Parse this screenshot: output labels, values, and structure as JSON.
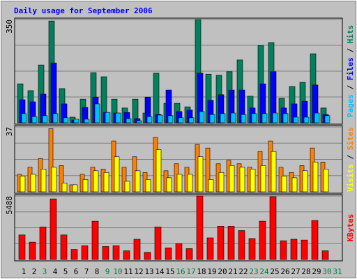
{
  "title": "Daily usage for September 2006",
  "categories": [
    "1",
    "2",
    "3",
    "4",
    "5",
    "6",
    "7",
    "8",
    "9",
    "10",
    "11",
    "12",
    "13",
    "14",
    "15",
    "16",
    "17",
    "18",
    "19",
    "20",
    "21",
    "22",
    "23",
    "24",
    "25",
    "26",
    "27",
    "28",
    "29",
    "30",
    "31"
  ],
  "category_colors": [
    "#000000",
    "#000000",
    "#008040",
    "#000000",
    "#000000",
    "#000000",
    "#000000",
    "#000000",
    "#008040",
    "#008040",
    "#000000",
    "#000000",
    "#000000",
    "#000000",
    "#000000",
    "#008040",
    "#008040",
    "#000000",
    "#000000",
    "#000000",
    "#000000",
    "#000000",
    "#008040",
    "#008040",
    "#000000",
    "#000000",
    "#000000",
    "#000000",
    "#000000",
    "#008040",
    "#008040"
  ],
  "legend_separator": " / ",
  "chart_data": [
    {
      "type": "bar",
      "ylim": [
        0,
        350
      ],
      "yticks": [
        350
      ],
      "series": [
        {
          "name": "Hits",
          "color": "#00805c",
          "values": [
            132,
            109,
            196,
            345,
            116,
            19,
            80,
            170,
            156,
            80,
            50,
            80,
            33,
            168,
            66,
            66,
            54,
            350,
            165,
            161,
            173,
            213,
            90,
            262,
            272,
            83,
            123,
            137,
            234,
            50,
            null
          ]
        },
        {
          "name": "Files",
          "color": "#0000ff",
          "values": [
            78,
            71,
            97,
            203,
            64,
            9,
            52,
            87,
            35,
            33,
            35,
            14,
            87,
            28,
            111,
            38,
            43,
            168,
            76,
            95,
            111,
            111,
            50,
            132,
            173,
            50,
            64,
            73,
            128,
            28,
            null
          ]
        },
        {
          "name": "Pages",
          "color": "#00c0ff",
          "values": [
            31,
            21,
            24,
            31,
            17,
            12,
            12,
            64,
            35,
            33,
            14,
            7,
            21,
            26,
            24,
            17,
            17,
            38,
            28,
            31,
            33,
            28,
            31,
            31,
            33,
            31,
            19,
            19,
            33,
            24,
            null
          ]
        }
      ]
    },
    {
      "type": "bar",
      "ylim": [
        0,
        37
      ],
      "yticks": [
        37
      ],
      "series": [
        {
          "name": "Sites",
          "color": "#ff8000",
          "values": [
            10,
            14,
            19,
            36,
            15,
            4,
            10,
            14,
            13,
            29,
            14,
            20,
            11,
            31,
            12,
            16,
            14,
            27,
            25,
            16,
            18,
            16,
            14,
            23,
            29,
            14,
            11,
            15,
            25,
            17,
            null
          ]
        },
        {
          "name": "Visits",
          "color": "#ffff00",
          "values": [
            9,
            10,
            13,
            14,
            5,
            4,
            7,
            12,
            11,
            20,
            6,
            12,
            7,
            24,
            8,
            10,
            10,
            20,
            7,
            11,
            15,
            14,
            13,
            15,
            23,
            9,
            8,
            12,
            17,
            13,
            null
          ]
        }
      ]
    },
    {
      "type": "bar",
      "ylim": [
        0,
        5488
      ],
      "yticks": [
        5488
      ],
      "series": [
        {
          "name": "KBytes",
          "color": "#ff0000",
          "values": [
            2120,
            1500,
            2810,
            5240,
            2120,
            870,
            1190,
            3310,
            1120,
            1190,
            750,
            1750,
            620,
            2810,
            1000,
            1370,
            940,
            5488,
            1870,
            2870,
            2870,
            2500,
            1810,
            3310,
            5430,
            1620,
            1750,
            1680,
            3370,
            750,
            null
          ]
        }
      ]
    }
  ]
}
